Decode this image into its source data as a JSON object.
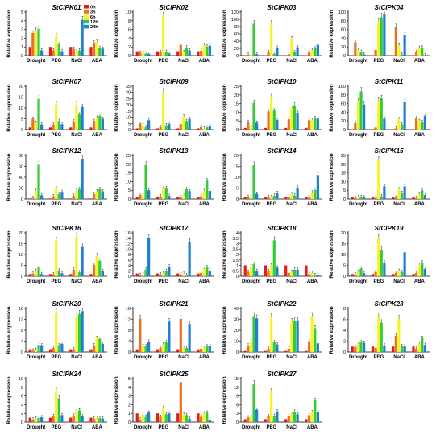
{
  "chart_data": {
    "legend": {
      "placement": "top-left-inside-first-panel",
      "entries": [
        {
          "label": "0h",
          "color": "#e41a1c"
        },
        {
          "label": "3h",
          "color": "#e8731e"
        },
        {
          "label": "6h",
          "color": "#f7f32a"
        },
        {
          "label": "12h",
          "color": "#33cc33"
        },
        {
          "label": "24h",
          "color": "#1f7fd6"
        }
      ]
    },
    "ylabel": "Relative expression",
    "categories": [
      "Drought",
      "PEG",
      "NaCl",
      "ABA"
    ],
    "panels": [
      {
        "title": "StCIPK01",
        "ylim": [
          0,
          5
        ],
        "yticks": [
          0,
          1,
          2,
          3,
          4,
          5
        ],
        "values": [
          [
            1,
            2.6,
            2.9,
            3.1,
            0.6
          ],
          [
            1,
            0.6,
            2.3,
            1.3,
            0.5
          ],
          [
            1,
            0.8,
            0.5,
            0.6,
            4.1
          ],
          [
            1,
            1.5,
            1.6,
            0.9,
            0.8
          ]
        ]
      },
      {
        "title": "StCIPK02",
        "ylim": [
          0,
          10
        ],
        "yticks": [
          0,
          2,
          4,
          6,
          8,
          10
        ],
        "values": [
          [
            1,
            0.7,
            0.6,
            0.5,
            0.4
          ],
          [
            1,
            0.8,
            9.3,
            0.9,
            0.5
          ],
          [
            1,
            2.5,
            0.8,
            1.9,
            1.2
          ],
          [
            1,
            1.1,
            2.4,
            2.1,
            2.3
          ]
        ]
      },
      {
        "title": "StCIPK03",
        "ylim": [
          0,
          120
        ],
        "yticks": [
          0,
          20,
          40,
          60,
          80,
          100,
          120
        ],
        "values": [
          [
            1,
            3,
            4,
            88,
            4
          ],
          [
            1,
            10,
            88,
            5,
            22
          ],
          [
            1,
            4,
            48,
            9,
            23
          ],
          [
            1,
            9,
            15,
            20,
            30
          ]
        ]
      },
      {
        "title": "StCIPK04",
        "ylim": [
          0,
          100
        ],
        "yticks": [
          0,
          20,
          40,
          60,
          80,
          100
        ],
        "values": [
          [
            1,
            31,
            13,
            9,
            3
          ],
          [
            1,
            13,
            78,
            88,
            95
          ],
          [
            1,
            66,
            23,
            3,
            48
          ],
          [
            1,
            8,
            18,
            19,
            1
          ]
        ]
      },
      {
        "title": "StCIPK07",
        "ylim": [
          0,
          20
        ],
        "yticks": [
          0,
          5,
          10,
          15,
          20
        ],
        "values": [
          [
            1,
            5,
            3.2,
            14.2,
            2.4
          ],
          [
            1,
            2.3,
            11.5,
            4,
            2.5
          ],
          [
            1,
            3.8,
            11.5,
            7,
            10.5
          ],
          [
            1,
            4,
            5.5,
            6.3,
            5
          ]
        ]
      },
      {
        "title": "StCIPK09",
        "ylim": [
          0,
          35
        ],
        "yticks": [
          0,
          5,
          10,
          15,
          20,
          25,
          30,
          35
        ],
        "values": [
          [
            1,
            5,
            3.5,
            2,
            7.6
          ],
          [
            1,
            2,
            30.2,
            3.5,
            4.5
          ],
          [
            1,
            4.4,
            10.6,
            7,
            8.6
          ],
          [
            1,
            2.2,
            0.8,
            1.8,
            3
          ]
        ]
      },
      {
        "title": "StCIPK10",
        "ylim": [
          0,
          25
        ],
        "yticks": [
          0,
          5,
          10,
          15,
          20,
          25
        ],
        "values": [
          [
            1,
            4.5,
            1.7,
            15.5,
            4
          ],
          [
            1,
            10.5,
            18.5,
            11,
            5.5
          ],
          [
            1,
            6,
            12.5,
            14,
            9.7
          ],
          [
            1,
            5.4,
            5.7,
            6.7,
            6.3
          ]
        ]
      },
      {
        "title": "StCIPK11",
        "ylim": [
          0,
          100
        ],
        "yticks": [
          0,
          20,
          40,
          60,
          80,
          100
        ],
        "values": [
          [
            1,
            15,
            65,
            88,
            58
          ],
          [
            1,
            5,
            67,
            72,
            25
          ],
          [
            1,
            3,
            24,
            12,
            63
          ],
          [
            1,
            26,
            20,
            18,
            32
          ]
        ]
      },
      {
        "title": "StCIPK12",
        "ylim": [
          0,
          80
        ],
        "yticks": [
          0,
          20,
          40,
          60,
          80
        ],
        "values": [
          [
            1,
            2,
            15,
            63,
            7
          ],
          [
            1,
            5,
            20,
            9,
            13
          ],
          [
            1,
            6,
            15,
            18,
            74
          ],
          [
            1,
            9,
            14,
            18,
            14
          ]
        ]
      },
      {
        "title": "StCIPK13",
        "ylim": [
          0,
          25
        ],
        "yticks": [
          0,
          5,
          10,
          15,
          20,
          25
        ],
        "values": [
          [
            1,
            2.5,
            2.1,
            19.5,
            5
          ],
          [
            1,
            1.6,
            5.7,
            6.3,
            1.8
          ],
          [
            1,
            1,
            2.4,
            5.6,
            4.5
          ],
          [
            1,
            1.6,
            4.6,
            10.7,
            4.6
          ]
        ]
      },
      {
        "title": "StCIPK14",
        "ylim": [
          0,
          20
        ],
        "yticks": [
          0,
          5,
          10,
          15,
          20
        ],
        "values": [
          [
            1,
            1,
            1,
            15.5,
            2.4
          ],
          [
            1,
            1,
            1,
            1.5,
            2.8
          ],
          [
            1,
            1,
            2.2,
            1.6,
            5.2
          ],
          [
            1,
            1,
            3,
            4.1,
            11
          ]
        ]
      },
      {
        "title": "StCIPK15",
        "ylim": [
          0,
          25
        ],
        "yticks": [
          0,
          5,
          10,
          15,
          20,
          25
        ],
        "values": [
          [
            1,
            0.6,
            1,
            1,
            0.9
          ],
          [
            1,
            0.7,
            22,
            1.6,
            7.2
          ],
          [
            1,
            0.8,
            5.5,
            3.5,
            7.2
          ],
          [
            1,
            0.6,
            2.9,
            5,
            2.3
          ]
        ]
      },
      {
        "title": "StCIPK16",
        "ylim": [
          0,
          20
        ],
        "yticks": [
          0,
          5,
          10,
          15,
          20
        ],
        "values": [
          [
            1,
            1.2,
            2.4,
            4,
            1
          ],
          [
            1,
            1,
            16.4,
            2.8,
            1.4
          ],
          [
            1,
            3,
            18.4,
            1.8,
            13.5
          ],
          [
            1,
            5.2,
            9.5,
            7.1,
            2.5
          ]
        ]
      },
      {
        "title": "StCIPK17",
        "ylim": [
          0,
          16
        ],
        "yticks": [
          0,
          2,
          4,
          6,
          8,
          10,
          12,
          14,
          16
        ],
        "values": [
          [
            1,
            0.5,
            0.6,
            2.5,
            14
          ],
          [
            1,
            0.7,
            1,
            2,
            3.6
          ],
          [
            1,
            0.7,
            0.9,
            0.5,
            12.6
          ],
          [
            1,
            1.2,
            2.8,
            3.3,
            2.1
          ]
        ]
      },
      {
        "title": "StCIPK18",
        "ylim": [
          0,
          4
        ],
        "yticks": [
          0,
          0.5,
          1,
          1.5,
          2,
          2.5,
          3,
          3.5,
          4
        ],
        "values": [
          [
            1,
            0.4,
            0.9,
            1.1,
            0.5
          ],
          [
            1,
            0.5,
            1,
            3.3,
            0.8
          ],
          [
            1,
            0.3,
            0.4,
            0.6,
            0.6
          ],
          [
            1,
            0.2,
            0.3,
            0.1,
            0.1
          ]
        ]
      },
      {
        "title": "StCIPK19",
        "ylim": [
          0,
          20
        ],
        "yticks": [
          0,
          5,
          10,
          15,
          20
        ],
        "values": [
          [
            1,
            0.8,
            2,
            3.6,
            1.4
          ],
          [
            1,
            2,
            17.5,
            12.2,
            6.3
          ],
          [
            1,
            1.6,
            2.5,
            1.9,
            11
          ],
          [
            1,
            1.5,
            5.2,
            6.4,
            3.4
          ]
        ]
      },
      {
        "title": "StCIPK20",
        "ylim": [
          0,
          16
        ],
        "yticks": [
          0,
          4,
          8,
          12,
          16
        ],
        "values": [
          [
            1,
            0.5,
            0.8,
            2.6,
            2.5
          ],
          [
            1,
            1.5,
            14.5,
            2.5,
            3
          ],
          [
            1,
            1,
            13,
            14,
            15
          ],
          [
            1,
            2.5,
            5.2,
            4.8,
            3
          ]
        ]
      },
      {
        "title": "StCIPK21",
        "ylim": [
          0,
          16
        ],
        "yticks": [
          0,
          4,
          8,
          12,
          16
        ],
        "values": [
          [
            1,
            12.3,
            2.1,
            2.1,
            3.8
          ],
          [
            1,
            1.5,
            2.8,
            3.6,
            11.2
          ],
          [
            1,
            12.2,
            1.6,
            1.5,
            10.3
          ],
          [
            1,
            1.2,
            1.6,
            2.1,
            2.1
          ]
        ]
      },
      {
        "title": "StCIPK22",
        "ylim": [
          0,
          40
        ],
        "yticks": [
          0,
          10,
          20,
          30,
          40
        ],
        "values": [
          [
            1,
            6,
            10,
            33,
            31
          ],
          [
            1,
            3,
            32,
            9,
            7
          ],
          [
            1,
            3,
            28,
            29,
            29
          ],
          [
            1,
            10,
            33,
            22,
            8
          ]
        ]
      },
      {
        "title": "StCIPK23",
        "ylim": [
          0,
          8
        ],
        "yticks": [
          0,
          2,
          4,
          6,
          8
        ],
        "values": [
          [
            1,
            0.9,
            1.5,
            1.8,
            1.7
          ],
          [
            1,
            0.8,
            6.5,
            5.4,
            1.2
          ],
          [
            1,
            3,
            6.1,
            1.1,
            1.1
          ],
          [
            1,
            0.6,
            1.5,
            2.6,
            1.3
          ]
        ]
      },
      {
        "title": "StCIPK24",
        "ylim": [
          0,
          10
        ],
        "yticks": [
          0,
          2,
          4,
          6,
          8,
          10
        ],
        "values": [
          [
            1,
            0.6,
            0.8,
            1,
            1.1
          ],
          [
            1,
            1.4,
            7.1,
            5.5,
            1.6
          ],
          [
            1,
            1.5,
            2.5,
            2.7,
            1.3
          ],
          [
            1,
            0.8,
            1,
            0.9,
            0.8
          ]
        ]
      },
      {
        "title": "StCIPK25",
        "ylim": [
          0,
          5
        ],
        "yticks": [
          0,
          1,
          2,
          3,
          4,
          5
        ],
        "values": [
          [
            1,
            0.3,
            0.9,
            0.6,
            1.1
          ],
          [
            1,
            0.6,
            1.6,
            0.9,
            1
          ],
          [
            1,
            4.6,
            0.9,
            0.8,
            0.4
          ],
          [
            1,
            0.6,
            1,
            1.1,
            0.2
          ]
        ]
      },
      {
        "title": "StCIPK27",
        "ylim": [
          0,
          15
        ],
        "yticks": [
          0,
          3,
          6,
          9,
          12,
          15
        ],
        "values": [
          [
            1,
            1.6,
            1.8,
            13,
            4.3
          ],
          [
            1,
            2,
            10.5,
            2.2,
            3.7
          ],
          [
            1,
            2,
            2.9,
            3.6,
            2.7
          ],
          [
            1,
            2.4,
            3.4,
            7.5,
            3.4
          ]
        ]
      }
    ]
  }
}
